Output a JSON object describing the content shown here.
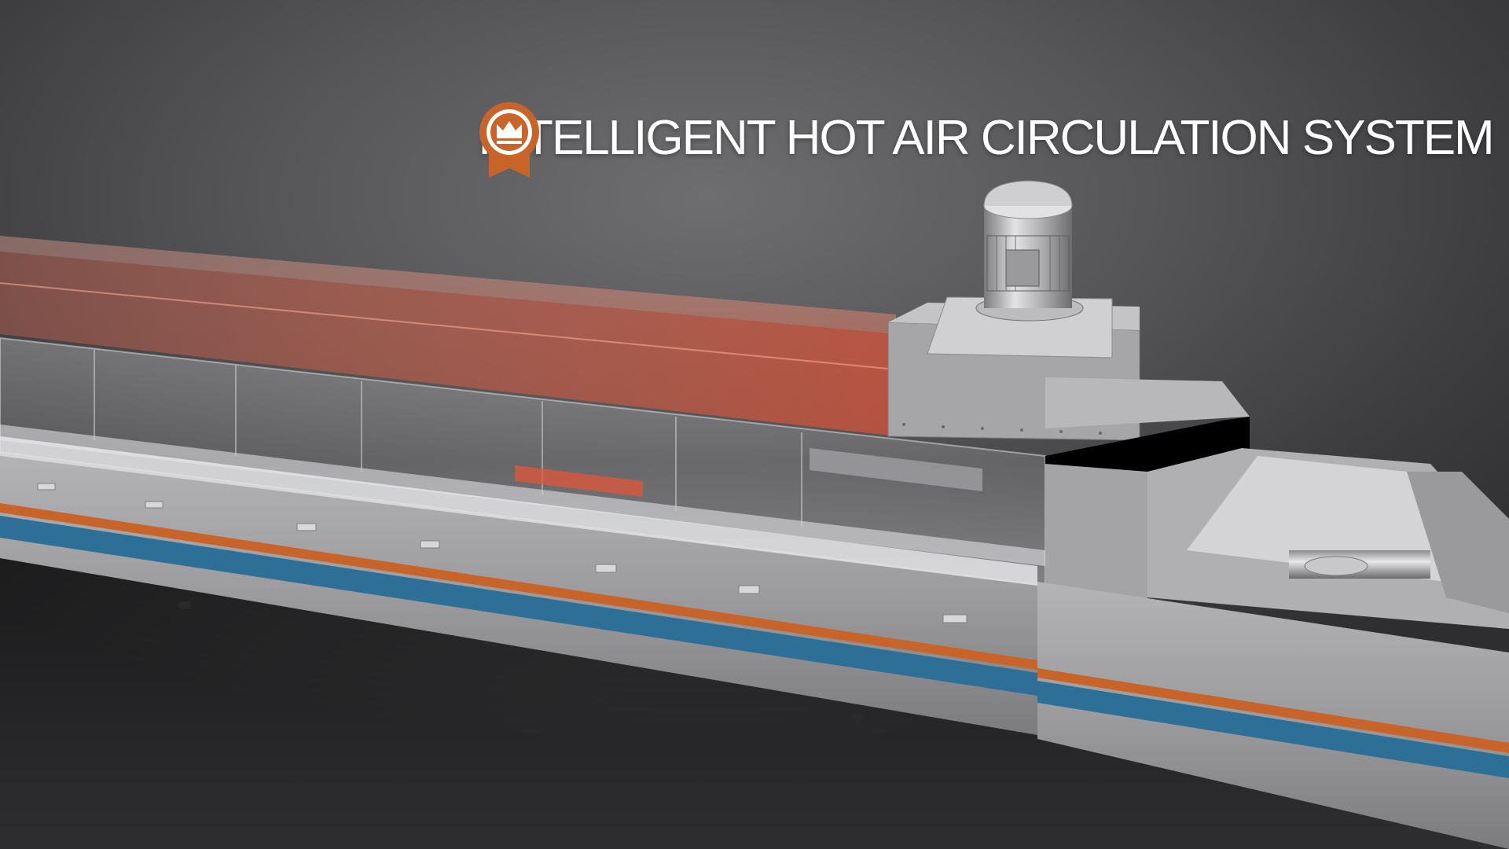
{
  "title": {
    "text": "INTELLIGENT HOT AIR CIRCULATION SYSTEM",
    "badge_icon": "crown-badge-icon"
  },
  "colors": {
    "accent_orange": "#c8642a",
    "accent_blue": "#2e6f98",
    "steel": "#9a9a9c",
    "heat_glow": "#e05a3a",
    "background": "#4a4a4c"
  }
}
